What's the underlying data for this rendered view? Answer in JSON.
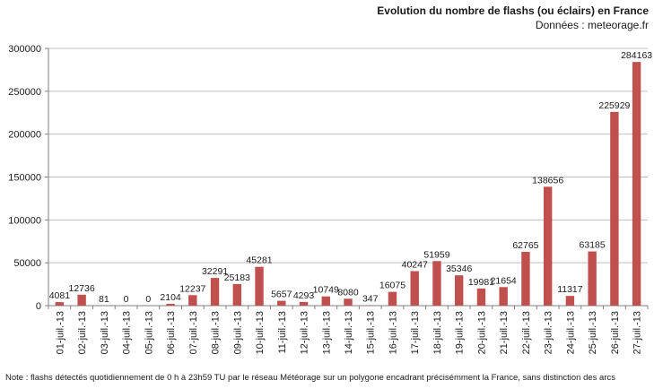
{
  "chart_data": {
    "type": "bar",
    "title": "Evolution du nombre de flashs (ou éclairs)  en France",
    "subtitle": "Données : meteorage.fr",
    "categories": [
      "01-juil.-13",
      "02-juil.-13",
      "03-juil.-13",
      "04-juil.-13",
      "05-juil.-13",
      "06-juil.-13",
      "07-juil.-13",
      "08-juil.-13",
      "09-juil.-13",
      "10-juil.-13",
      "11-juil.-13",
      "12-juil.-13",
      "13-juil.-13",
      "14-juil.-13",
      "15-juil.-13",
      "16-juil.-13",
      "17-juil.-13",
      "18-juil.-13",
      "19-juil.-13",
      "20-juil.-13",
      "21-juil.-13",
      "22-juil.-13",
      "23-juil.-13",
      "24-juil.-13",
      "25-juil.-13",
      "26-juil.-13",
      "27-juil.-13"
    ],
    "values": [
      4081,
      12736,
      81,
      0,
      0,
      2104,
      12237,
      32291,
      25183,
      45281,
      5657,
      4293,
      10749,
      8080,
      347,
      16075,
      40247,
      51959,
      35346,
      19981,
      21654,
      62765,
      138656,
      11317,
      63185,
      225929,
      284163
    ],
    "data_labels": [
      "4081",
      "12736",
      "81",
      "0",
      "0",
      "2104",
      "12237",
      "32291",
      "25183",
      "45281",
      "5657",
      "4293",
      "10749",
      "8080",
      "347",
      "16075",
      "40247",
      "51959",
      "35346",
      "19981",
      "21654",
      "62765",
      "138656",
      "11317",
      "63185",
      "225929",
      "284163"
    ],
    "ylim": [
      0,
      300000
    ],
    "yticks": [
      0,
      50000,
      100000,
      150000,
      200000,
      250000,
      300000
    ],
    "ytick_labels": [
      "0",
      "50000",
      "100000",
      "150000",
      "200000",
      "250000",
      "300000"
    ],
    "xlabel": "",
    "ylabel": "",
    "grid": true,
    "bar_color": "#c0504d",
    "grid_color": "#bfbfbf",
    "note": "Note : flashs détectés quotidiennement de 0 h à 23h59 TU par le réseau Météorage sur un polygone encadrant précisémment la France, sans distinction des arcs"
  }
}
